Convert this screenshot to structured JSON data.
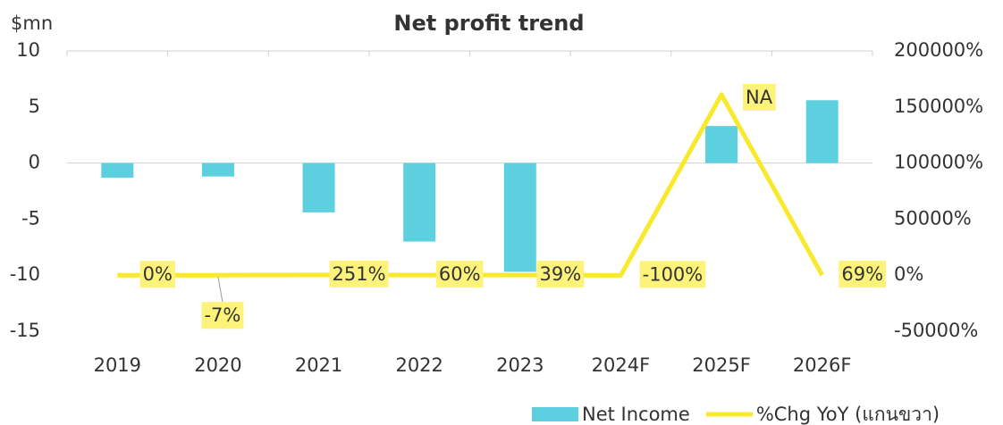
{
  "chart_data": {
    "type": "bar",
    "title": "Net profit trend",
    "y_label": "$mn",
    "categories": [
      "2019",
      "2020",
      "2021",
      "2022",
      "2023",
      "2024F",
      "2025F",
      "2026F"
    ],
    "series": [
      {
        "name": "Net Income",
        "type": "bar",
        "color": "#5dd0e0",
        "values": [
          -1.3,
          -1.2,
          -4.4,
          -7.0,
          -9.7,
          0,
          3.3,
          5.6
        ]
      },
      {
        "name": "%Chg YoY (แกนขวา)",
        "type": "line",
        "axis": "y2",
        "color": "#f8e92c",
        "values": [
          0,
          -7,
          251,
          60,
          39,
          -100,
          161000,
          69
        ],
        "value_labels": [
          "0%",
          "-7%",
          "251%",
          "60%",
          "39%",
          "-100%",
          "NA",
          "69%"
        ]
      }
    ],
    "ylim": [
      -15,
      10
    ],
    "yticks": [
      -15,
      -10,
      -5,
      0,
      5,
      10
    ],
    "y2lim": [
      -50000,
      200000
    ],
    "y2ticks": [
      {
        "value": -50000,
        "label": "-50000%"
      },
      {
        "value": 0,
        "label": "0%"
      },
      {
        "value": 50000,
        "label": "50000%"
      },
      {
        "value": 100000,
        "label": "100000%"
      },
      {
        "value": 150000,
        "label": "150000%"
      },
      {
        "value": 200000,
        "label": "200000%"
      }
    ],
    "legend": "bottom-right"
  }
}
